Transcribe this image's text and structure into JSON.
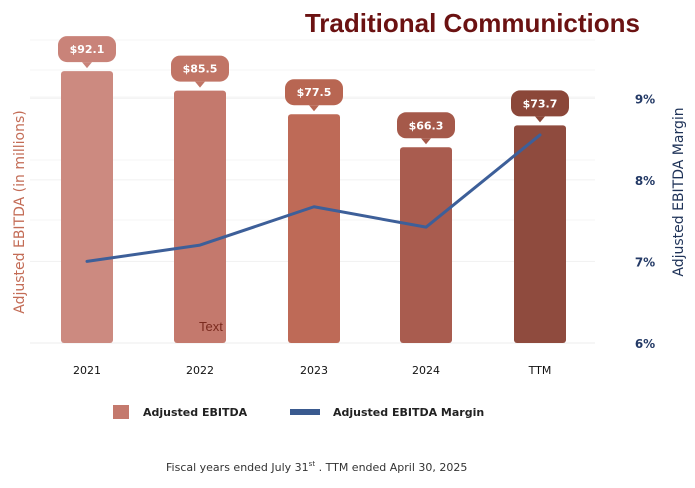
{
  "chart_data": {
    "type": "bar",
    "title": "Traditional Communictions",
    "categories": [
      "2021",
      "2022",
      "2023",
      "2024",
      "TTM"
    ],
    "ylabel": "Adjusted EBITDA (in millions)",
    "y2label": "Adjusted EBITDA Margin",
    "ylim": [
      0,
      105
    ],
    "y2lim": [
      6,
      9.8
    ],
    "y2ticks": [
      6,
      7,
      8,
      9
    ],
    "y2tick_labels": [
      "6%",
      "7%",
      "8%",
      "9%"
    ],
    "series": [
      {
        "name": "Adjusted EBITDA",
        "type": "bar",
        "axis": "left",
        "values": [
          92.1,
          85.5,
          77.5,
          66.3,
          73.7
        ],
        "labels": [
          "$92.1",
          "$85.5",
          "$77.5",
          "$66.3",
          "$73.7"
        ],
        "colors": [
          "#cc8a80",
          "#c4796d",
          "#be6a57",
          "#a95c4f",
          "#8f4b3e"
        ],
        "label_colors": [
          "#c98379",
          "#c17566",
          "#b86652",
          "#a5594a",
          "#8b4739"
        ]
      },
      {
        "name": "Adjusted EBITDA Margin",
        "type": "line",
        "axis": "right",
        "values": [
          7.0,
          7.2,
          7.67,
          7.42,
          8.55
        ],
        "color": "#3d5f99"
      }
    ],
    "legend": {
      "position": "bottom",
      "items": [
        {
          "label": "Adjusted EBITDA",
          "color": "#c4796d",
          "shape": "square"
        },
        {
          "label": "Adjusted EBITDA Margin",
          "color": "#3a5a8f",
          "shape": "line"
        }
      ]
    },
    "stray_text": "Text"
  },
  "footnote": {
    "prefix": "Fiscal years  ended July 31",
    "superscript": "st",
    "suffix": " .  TTM ended April 30, 2025"
  }
}
